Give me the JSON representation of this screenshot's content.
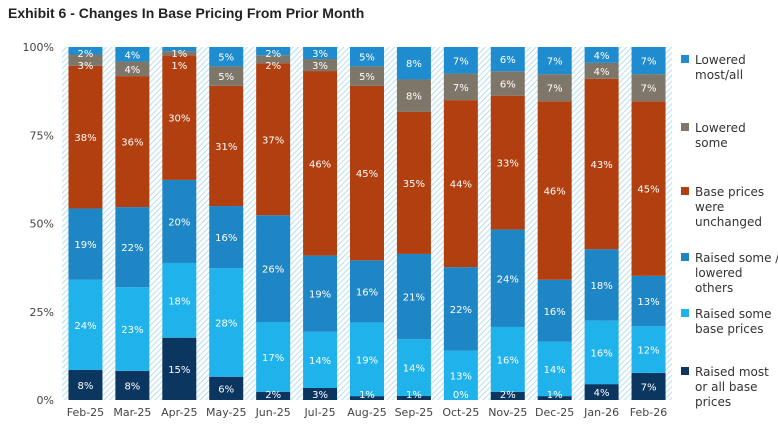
{
  "title": "Exhibit 6 - Changes In Base Pricing From Prior Month",
  "chart_data": {
    "type": "bar",
    "stacked": true,
    "title": "Exhibit 6 - Changes In Base Pricing From Prior Month",
    "categories": [
      "Feb-25",
      "Mar-25",
      "Apr-25",
      "May-25",
      "Jun-25",
      "Jul-25",
      "Aug-25",
      "Sep-25",
      "Oct-25",
      "Nov-25",
      "Dec-25",
      "Jan-26",
      "Feb-26"
    ],
    "ylim": [
      0,
      100
    ],
    "yticks": [
      "0%",
      "25%",
      "50%",
      "75%",
      "100%"
    ],
    "legend_position": "right",
    "series": [
      {
        "name": "Raised most or all base prices",
        "color": "#0b3660",
        "values": [
          8,
          8,
          15,
          6,
          2,
          3,
          1,
          1,
          0,
          2,
          1,
          4,
          7
        ]
      },
      {
        "name": "Raised some base prices",
        "color": "#20b2ea",
        "values": [
          24,
          23,
          18,
          28,
          17,
          14,
          19,
          14,
          13,
          16,
          14,
          16,
          12
        ]
      },
      {
        "name": "Raised some / lowered others",
        "color": "#1f86c6",
        "values": [
          19,
          22,
          20,
          16,
          26,
          19,
          16,
          21,
          22,
          24,
          16,
          18,
          13
        ]
      },
      {
        "name": "Base prices were unchanged",
        "color": "#b23f10",
        "values": [
          38,
          36,
          30,
          31,
          37,
          46,
          45,
          35,
          44,
          33,
          46,
          43,
          45
        ]
      },
      {
        "name": "Lowered some",
        "color": "#7e7668",
        "values": [
          3,
          4,
          1,
          5,
          2,
          3,
          5,
          8,
          7,
          6,
          7,
          4,
          7
        ]
      },
      {
        "name": "Lowered most/all",
        "color": "#1f8ccf",
        "values": [
          2,
          4,
          1,
          5,
          2,
          3,
          5,
          8,
          7,
          6,
          7,
          4,
          7
        ]
      }
    ],
    "legend_lines": [
      [
        "Raised most",
        "or all base",
        "prices"
      ],
      [
        "Raised some",
        "base prices"
      ],
      [
        "Raised some /",
        "lowered",
        "others"
      ],
      [
        "Base prices",
        "were",
        "unchanged"
      ],
      [
        "Lowered",
        "some"
      ],
      [
        "Lowered",
        "most/all"
      ]
    ]
  }
}
